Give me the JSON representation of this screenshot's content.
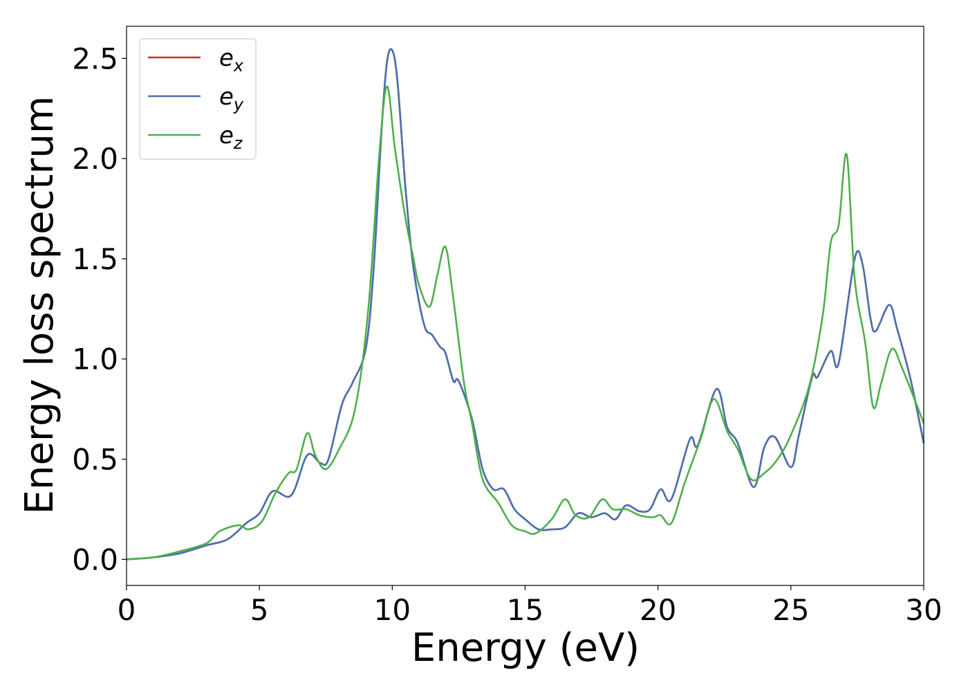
{
  "chart_data": {
    "type": "line",
    "xlabel": "Energy (eV)",
    "ylabel": "Energy loss spectrum",
    "xlim": [
      0,
      30
    ],
    "ylim": [
      -0.13,
      2.66
    ],
    "xticks": [
      0,
      5,
      10,
      15,
      20,
      25,
      30
    ],
    "xtick_labels": [
      "0",
      "5",
      "10",
      "15",
      "20",
      "25",
      "30"
    ],
    "yticks": [
      0.0,
      0.5,
      1.0,
      1.5,
      2.0,
      2.5
    ],
    "ytick_labels": [
      "0.0",
      "0.5",
      "1.0",
      "1.5",
      "2.0",
      "2.5"
    ],
    "grid": false,
    "legend_position": "top-left",
    "series": [
      {
        "name": "e_x",
        "legend_base": "e",
        "legend_sub": "x",
        "color": "#d62728",
        "points": [
          [
            0,
            0
          ],
          [
            1,
            0.01
          ],
          [
            2,
            0.03
          ],
          [
            3,
            0.07
          ],
          [
            3.8,
            0.1
          ],
          [
            4.5,
            0.18
          ],
          [
            5,
            0.23
          ],
          [
            5.5,
            0.34
          ],
          [
            6.2,
            0.32
          ],
          [
            6.8,
            0.52
          ],
          [
            7.3,
            0.48
          ],
          [
            7.6,
            0.5
          ],
          [
            8.1,
            0.77
          ],
          [
            8.5,
            0.88
          ],
          [
            9,
            1.05
          ],
          [
            9.3,
            1.45
          ],
          [
            9.6,
            2.15
          ],
          [
            9.8,
            2.48
          ],
          [
            10,
            2.54
          ],
          [
            10.2,
            2.38
          ],
          [
            10.5,
            1.85
          ],
          [
            10.8,
            1.45
          ],
          [
            11.2,
            1.17
          ],
          [
            11.5,
            1.12
          ],
          [
            11.8,
            1.06
          ],
          [
            12,
            1.03
          ],
          [
            12.3,
            0.89
          ],
          [
            12.5,
            0.89
          ],
          [
            13,
            0.7
          ],
          [
            13.4,
            0.45
          ],
          [
            13.8,
            0.35
          ],
          [
            14.2,
            0.35
          ],
          [
            14.6,
            0.25
          ],
          [
            15,
            0.2
          ],
          [
            15.5,
            0.15
          ],
          [
            16,
            0.15
          ],
          [
            16.5,
            0.16
          ],
          [
            17,
            0.23
          ],
          [
            17.5,
            0.21
          ],
          [
            18,
            0.23
          ],
          [
            18.4,
            0.2
          ],
          [
            18.8,
            0.27
          ],
          [
            19.3,
            0.24
          ],
          [
            19.7,
            0.25
          ],
          [
            20.1,
            0.35
          ],
          [
            20.5,
            0.3
          ],
          [
            21.2,
            0.6
          ],
          [
            21.5,
            0.57
          ],
          [
            22.2,
            0.85
          ],
          [
            22.6,
            0.66
          ],
          [
            23,
            0.58
          ],
          [
            23.6,
            0.36
          ],
          [
            24,
            0.56
          ],
          [
            24.4,
            0.61
          ],
          [
            25,
            0.46
          ],
          [
            25.3,
            0.62
          ],
          [
            25.8,
            0.91
          ],
          [
            26,
            0.91
          ],
          [
            26.5,
            1.04
          ],
          [
            26.8,
            0.98
          ],
          [
            27.4,
            1.5
          ],
          [
            27.7,
            1.47
          ],
          [
            28,
            1.2
          ],
          [
            28.2,
            1.14
          ],
          [
            28.7,
            1.27
          ],
          [
            29,
            1.15
          ],
          [
            29.5,
            0.9
          ],
          [
            30,
            0.58
          ]
        ]
      },
      {
        "name": "e_y",
        "legend_base": "e",
        "legend_sub": "y",
        "color": "#4872b0",
        "points": [
          [
            0,
            0
          ],
          [
            1,
            0.01
          ],
          [
            2,
            0.03
          ],
          [
            3,
            0.07
          ],
          [
            3.8,
            0.1
          ],
          [
            4.5,
            0.18
          ],
          [
            5,
            0.23
          ],
          [
            5.5,
            0.34
          ],
          [
            6.2,
            0.32
          ],
          [
            6.8,
            0.52
          ],
          [
            7.3,
            0.48
          ],
          [
            7.6,
            0.5
          ],
          [
            8.1,
            0.77
          ],
          [
            8.5,
            0.88
          ],
          [
            9,
            1.05
          ],
          [
            9.3,
            1.45
          ],
          [
            9.6,
            2.15
          ],
          [
            9.8,
            2.48
          ],
          [
            10,
            2.54
          ],
          [
            10.2,
            2.38
          ],
          [
            10.5,
            1.85
          ],
          [
            10.8,
            1.45
          ],
          [
            11.2,
            1.17
          ],
          [
            11.5,
            1.12
          ],
          [
            11.8,
            1.06
          ],
          [
            12,
            1.03
          ],
          [
            12.3,
            0.89
          ],
          [
            12.5,
            0.89
          ],
          [
            13,
            0.7
          ],
          [
            13.4,
            0.45
          ],
          [
            13.8,
            0.35
          ],
          [
            14.2,
            0.35
          ],
          [
            14.6,
            0.25
          ],
          [
            15,
            0.2
          ],
          [
            15.5,
            0.15
          ],
          [
            16,
            0.15
          ],
          [
            16.5,
            0.16
          ],
          [
            17,
            0.23
          ],
          [
            17.5,
            0.21
          ],
          [
            18,
            0.23
          ],
          [
            18.4,
            0.2
          ],
          [
            18.8,
            0.27
          ],
          [
            19.3,
            0.24
          ],
          [
            19.7,
            0.25
          ],
          [
            20.1,
            0.35
          ],
          [
            20.5,
            0.3
          ],
          [
            21.2,
            0.6
          ],
          [
            21.5,
            0.57
          ],
          [
            22.2,
            0.85
          ],
          [
            22.6,
            0.66
          ],
          [
            23,
            0.58
          ],
          [
            23.6,
            0.36
          ],
          [
            24,
            0.56
          ],
          [
            24.4,
            0.61
          ],
          [
            25,
            0.46
          ],
          [
            25.3,
            0.62
          ],
          [
            25.8,
            0.91
          ],
          [
            26,
            0.91
          ],
          [
            26.5,
            1.04
          ],
          [
            26.8,
            0.98
          ],
          [
            27.4,
            1.5
          ],
          [
            27.7,
            1.47
          ],
          [
            28,
            1.2
          ],
          [
            28.2,
            1.14
          ],
          [
            28.7,
            1.27
          ],
          [
            29,
            1.15
          ],
          [
            29.5,
            0.9
          ],
          [
            30,
            0.58
          ]
        ]
      },
      {
        "name": "e_z",
        "legend_base": "e",
        "legend_sub": "z",
        "color": "#4daf4a",
        "points": [
          [
            0,
            0
          ],
          [
            1,
            0.01
          ],
          [
            2,
            0.04
          ],
          [
            3,
            0.08
          ],
          [
            3.5,
            0.14
          ],
          [
            4.2,
            0.17
          ],
          [
            4.6,
            0.15
          ],
          [
            5.1,
            0.19
          ],
          [
            5.6,
            0.33
          ],
          [
            6.1,
            0.43
          ],
          [
            6.4,
            0.45
          ],
          [
            6.8,
            0.63
          ],
          [
            7.1,
            0.52
          ],
          [
            7.5,
            0.45
          ],
          [
            8,
            0.55
          ],
          [
            8.6,
            0.75
          ],
          [
            9.1,
            1.25
          ],
          [
            9.5,
            2.0
          ],
          [
            9.8,
            2.36
          ],
          [
            10.1,
            2.05
          ],
          [
            10.5,
            1.7
          ],
          [
            10.8,
            1.5
          ],
          [
            11,
            1.37
          ],
          [
            11.4,
            1.26
          ],
          [
            11.7,
            1.42
          ],
          [
            12,
            1.56
          ],
          [
            12.3,
            1.3
          ],
          [
            12.7,
            0.88
          ],
          [
            13,
            0.68
          ],
          [
            13.4,
            0.4
          ],
          [
            14,
            0.28
          ],
          [
            14.5,
            0.17
          ],
          [
            15,
            0.14
          ],
          [
            15.4,
            0.13
          ],
          [
            16,
            0.2
          ],
          [
            16.5,
            0.3
          ],
          [
            16.9,
            0.22
          ],
          [
            17.4,
            0.21
          ],
          [
            17.9,
            0.3
          ],
          [
            18.3,
            0.25
          ],
          [
            18.8,
            0.25
          ],
          [
            19.3,
            0.22
          ],
          [
            19.8,
            0.21
          ],
          [
            20.1,
            0.22
          ],
          [
            20.5,
            0.18
          ],
          [
            21,
            0.38
          ],
          [
            21.6,
            0.6
          ],
          [
            22.1,
            0.8
          ],
          [
            22.6,
            0.64
          ],
          [
            23,
            0.55
          ],
          [
            23.5,
            0.4
          ],
          [
            24,
            0.43
          ],
          [
            24.5,
            0.5
          ],
          [
            25,
            0.62
          ],
          [
            25.7,
            0.87
          ],
          [
            26.2,
            1.22
          ],
          [
            26.5,
            1.58
          ],
          [
            26.8,
            1.67
          ],
          [
            27.1,
            2.02
          ],
          [
            27.4,
            1.4
          ],
          [
            27.8,
            1.08
          ],
          [
            28.1,
            0.76
          ],
          [
            28.4,
            0.88
          ],
          [
            28.8,
            1.05
          ],
          [
            29.2,
            0.95
          ],
          [
            30,
            0.68
          ]
        ]
      }
    ]
  }
}
